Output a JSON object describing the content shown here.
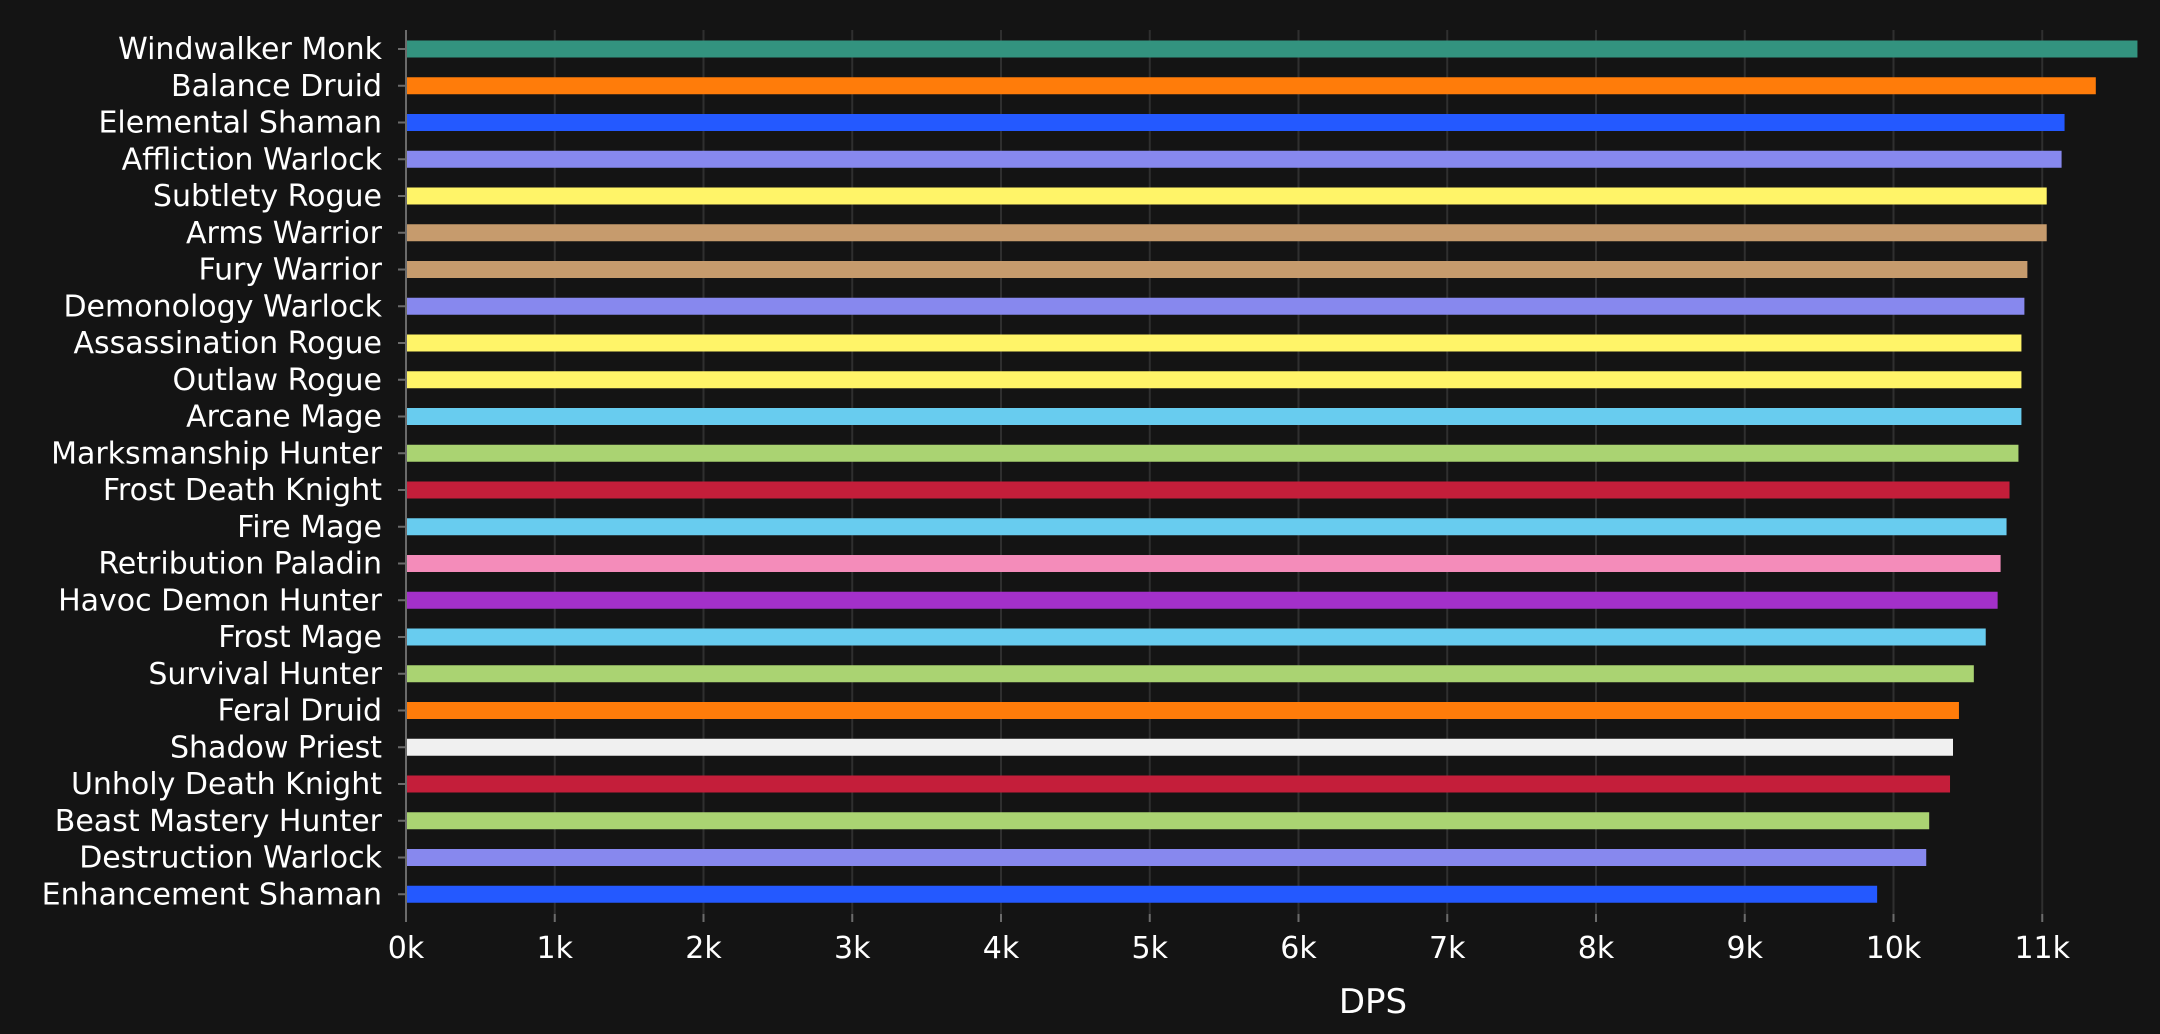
{
  "chart_data": {
    "type": "bar",
    "orientation": "horizontal",
    "title": "",
    "xlabel": "DPS",
    "ylabel": "",
    "xlim": [
      0,
      11700
    ],
    "xticks": [
      0,
      1000,
      2000,
      3000,
      4000,
      5000,
      6000,
      7000,
      8000,
      9000,
      10000,
      11000
    ],
    "xtick_labels": [
      "0k",
      "1k",
      "2k",
      "3k",
      "4k",
      "5k",
      "6k",
      "7k",
      "8k",
      "9k",
      "10k",
      "11k"
    ],
    "grid": true,
    "categories": [
      "Windwalker Monk",
      "Balance Druid",
      "Elemental Shaman",
      "Affliction Warlock",
      "Subtlety Rogue",
      "Arms Warrior",
      "Fury Warrior",
      "Demonology Warlock",
      "Assassination Rogue",
      "Outlaw Rogue",
      "Arcane Mage",
      "Marksmanship Hunter",
      "Frost Death Knight",
      "Fire Mage",
      "Retribution Paladin",
      "Havoc Demon Hunter",
      "Frost Mage",
      "Survival Hunter",
      "Feral Druid",
      "Shadow Priest",
      "Unholy Death Knight",
      "Beast Mastery Hunter",
      "Destruction Warlock",
      "Enhancement Shaman"
    ],
    "values": [
      11640,
      11360,
      11150,
      11130,
      11030,
      11030,
      10900,
      10880,
      10860,
      10860,
      10860,
      10840,
      10780,
      10760,
      10720,
      10700,
      10620,
      10540,
      10440,
      10400,
      10380,
      10240,
      10220,
      9890
    ],
    "colors": [
      "#33937f",
      "#ff7c0a",
      "#2459ff",
      "#8788ee",
      "#fff468",
      "#c69b6d",
      "#c69b6d",
      "#8788ee",
      "#fff468",
      "#fff468",
      "#68ccef",
      "#aad372",
      "#c41e3a",
      "#68ccef",
      "#f48cba",
      "#a330c9",
      "#68ccef",
      "#aad372",
      "#ff7c0a",
      "#f0f0f0",
      "#c41e3a",
      "#aad372",
      "#8788ee",
      "#2459ff"
    ]
  }
}
